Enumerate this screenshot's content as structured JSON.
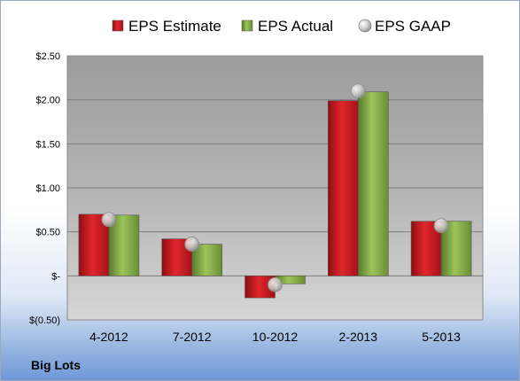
{
  "company": "Big Lots",
  "chart_data": {
    "type": "bar",
    "categories": [
      "4-2012",
      "7-2012",
      "10-2012",
      "2-2013",
      "5-2013"
    ],
    "series": [
      {
        "name": "EPS Estimate",
        "kind": "bar",
        "color": "#c0161d",
        "values": [
          0.7,
          0.42,
          -0.25,
          1.99,
          0.62
        ]
      },
      {
        "name": "EPS Actual",
        "kind": "bar",
        "color": "#7aa040",
        "values": [
          0.69,
          0.36,
          -0.09,
          2.09,
          0.62
        ]
      },
      {
        "name": "EPS GAAP",
        "kind": "marker",
        "color": "#b8b8b8",
        "values": [
          0.64,
          0.36,
          -0.1,
          2.1,
          0.57
        ]
      }
    ],
    "yticks": [
      -0.5,
      0,
      0.5,
      1.0,
      1.5,
      2.0,
      2.5
    ],
    "ytick_labels": [
      "$(0.50)",
      "$-",
      "$0.50",
      "$1.00",
      "$1.50",
      "$2.00",
      "$2.50"
    ],
    "ylim": [
      -0.5,
      2.5
    ],
    "grid": true,
    "legend_position": "top"
  }
}
